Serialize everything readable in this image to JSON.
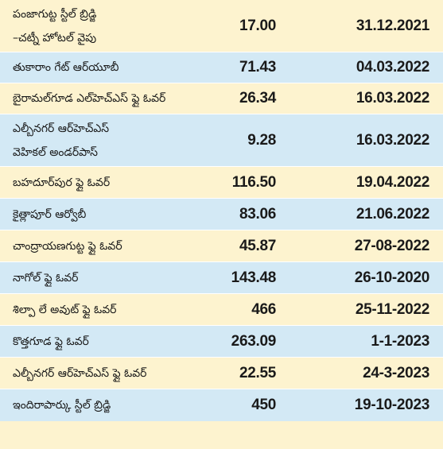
{
  "rows": [
    {
      "name": [
        "పంజాగుట్ట స్టీల్ బ్రిడ్జి",
        "–చట్నీ హోటల్ వైపు"
      ],
      "cost": "17.00",
      "date": "31.12.2021"
    },
    {
      "name": [
        "తుకారాం గేట్ ఆర్‌యూబీ"
      ],
      "cost": "71.43",
      "date": "04.03.2022"
    },
    {
      "name": [
        "బైరామల్‌గూడ ఎల్‌హెచ్‌ఎస్ ఫ్లై ఓవర్"
      ],
      "cost": "26.34",
      "date": "16.03.2022"
    },
    {
      "name": [
        "ఎల్బీనగర్ ఆర్‌హెచ్‌ఎస్",
        "వెహికల్ అండర్‌పాస్"
      ],
      "cost": "9.28",
      "date": "16.03.2022"
    },
    {
      "name": [
        "బహదూర్‌పుర ఫ్లై ఓవర్"
      ],
      "cost": "116.50",
      "date": "19.04.2022"
    },
    {
      "name": [
        "కైత్లాపూర్ ఆర్వోబీ"
      ],
      "cost": "83.06",
      "date": "21.06.2022"
    },
    {
      "name": [
        "చాంద్రాయణగుట్ట ఫ్లై ఓవర్"
      ],
      "cost": "45.87",
      "date": "27-08-2022"
    },
    {
      "name": [
        "నాగోల్ ఫ్లై ఓవర్"
      ],
      "cost": "143.48",
      "date": "26-10-2020"
    },
    {
      "name": [
        "శిల్పా లే అవుట్ ఫ్లై ఓవర్"
      ],
      "cost": "466",
      "date": "25-11-2022"
    },
    {
      "name": [
        "కొత్తగూడ ఫ్లై ఓవర్"
      ],
      "cost": "263.09",
      "date": "1-1-2023"
    },
    {
      "name": [
        "ఎల్బీనగర్ ఆర్‌హెచ్‌ఎస్ ఫ్లై ఓవర్"
      ],
      "cost": "22.55",
      "date": "24-3-2023"
    },
    {
      "name": [
        "ఇందిరాపార్కు స్టీల్ బ్రిడ్జి"
      ],
      "cost": "450",
      "date": "19-10-2023"
    }
  ]
}
